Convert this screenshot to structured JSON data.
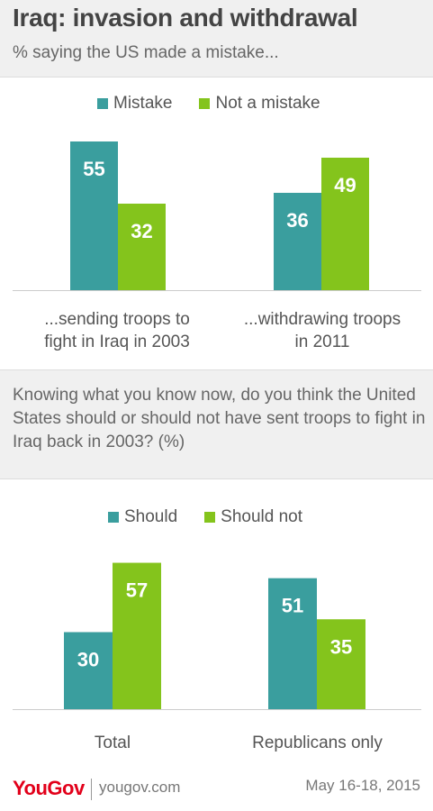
{
  "header": {
    "title": "Iraq: invasion and withdrawal",
    "subtitle": "% saying the US made a mistake..."
  },
  "colors": {
    "teal": "#3a9e9e",
    "green": "#84c41c",
    "label": "#ffffff"
  },
  "chart_data": [
    {
      "type": "bar",
      "title": "",
      "categories": [
        "...sending troops to fight in Iraq in 2003",
        "...withdrawing troops in 2011"
      ],
      "category_lines": [
        [
          "...sending troops to",
          "fight in Iraq in 2003"
        ],
        [
          "...withdrawing troops",
          "in 2011"
        ]
      ],
      "series": [
        {
          "name": "Mistake",
          "values": [
            55,
            36
          ]
        },
        {
          "name": "Not a mistake",
          "values": [
            32,
            49
          ]
        }
      ],
      "ylim": [
        0,
        60
      ],
      "legend_position": "top-center",
      "grid": false
    },
    {
      "type": "bar",
      "title": "Knowing what you know now, do you think the United States should or should not have sent troops to fight in Iraq back in 2003? (%)",
      "categories": [
        "Total",
        "Republicans only"
      ],
      "category_lines": [
        [
          "Total"
        ],
        [
          "Republicans only"
        ]
      ],
      "series": [
        {
          "name": "Should",
          "values": [
            30,
            51
          ]
        },
        {
          "name": "Should not",
          "values": [
            57,
            35
          ]
        }
      ],
      "ylim": [
        0,
        60
      ],
      "legend_position": "top-center",
      "grid": false
    }
  ],
  "footer": {
    "brand": "YouGov",
    "site": "yougov.com",
    "date": "May 16-18, 2015"
  }
}
